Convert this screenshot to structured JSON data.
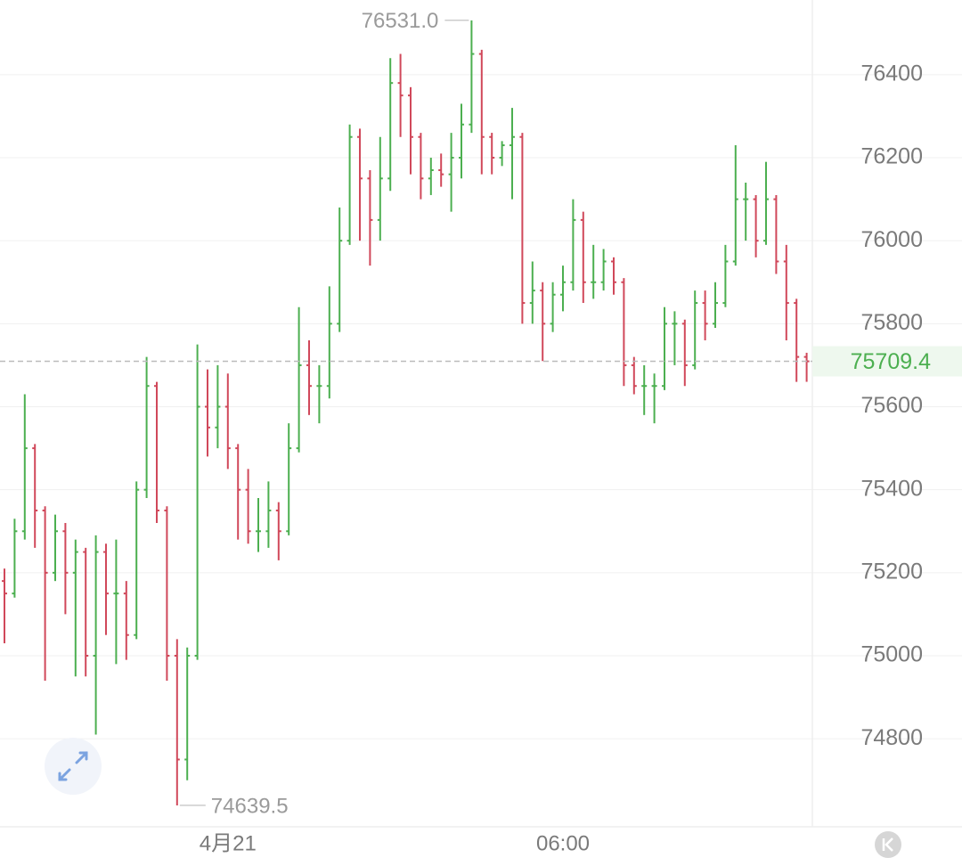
{
  "chart_data": {
    "type": "ohlc",
    "up_color": "#4caf50",
    "down_color": "#d0485a",
    "ylim": [
      74590,
      76580
    ],
    "yticks": [
      74800,
      75000,
      75200,
      75400,
      75600,
      75800,
      76000,
      76200,
      76400
    ],
    "grid": true,
    "high_marker": {
      "value": 76531,
      "label": "76531.0"
    },
    "low_marker": 74639.5,
    "last_price": 75709.4,
    "categories": [
      null,
      null,
      null,
      null,
      null,
      null,
      null,
      null,
      null,
      null,
      null,
      null,
      null,
      null,
      null,
      null,
      null,
      null,
      null,
      null,
      null,
      null,
      "4月21",
      null,
      null,
      null,
      null,
      null,
      null,
      null,
      null,
      null,
      null,
      null,
      null,
      null,
      null,
      null,
      null,
      null,
      null,
      null,
      null,
      null,
      null,
      null,
      null,
      null,
      null,
      null,
      null,
      null,
      null,
      null,
      null,
      "06:00",
      null,
      null,
      null,
      null,
      null,
      null,
      null,
      null,
      null,
      null,
      null,
      null,
      null,
      null,
      null,
      null,
      null,
      null,
      null,
      null,
      null,
      null,
      null,
      null
    ],
    "ohlc": [
      [
        75180,
        75210,
        75030,
        75150
      ],
      [
        75150,
        75330,
        75140,
        75300
      ],
      [
        75300,
        75630,
        75280,
        75500
      ],
      [
        75500,
        75510,
        75260,
        75350
      ],
      [
        75350,
        75360,
        74940,
        75200
      ],
      [
        75200,
        75340,
        75180,
        75300
      ],
      [
        75300,
        75320,
        75100,
        75200
      ],
      [
        75200,
        75280,
        74950,
        75250
      ],
      [
        75250,
        75260,
        74950,
        75000
      ],
      [
        75000,
        75290,
        74810,
        75250
      ],
      [
        75250,
        75270,
        75050,
        75150
      ],
      [
        75150,
        75280,
        74980,
        75150
      ],
      [
        75150,
        75180,
        74990,
        75050
      ],
      [
        75050,
        75420,
        75040,
        75400
      ],
      [
        75400,
        75720,
        75380,
        75650
      ],
      [
        75650,
        75660,
        75320,
        75350
      ],
      [
        75350,
        75360,
        74940,
        75000
      ],
      [
        75000,
        75040,
        74639.5,
        74750
      ],
      [
        74750,
        75020,
        74700,
        75000
      ],
      [
        75000,
        75750,
        74990,
        75600
      ],
      [
        75600,
        75690,
        75480,
        75550
      ],
      [
        75550,
        75700,
        75500,
        75600
      ],
      [
        75600,
        75680,
        75450,
        75500
      ],
      [
        75500,
        75510,
        75280,
        75400
      ],
      [
        75400,
        75450,
        75270,
        75300
      ],
      [
        75300,
        75380,
        75250,
        75300
      ],
      [
        75300,
        75420,
        75260,
        75350
      ],
      [
        75350,
        75370,
        75230,
        75300
      ],
      [
        75300,
        75560,
        75290,
        75500
      ],
      [
        75500,
        75840,
        75490,
        75700
      ],
      [
        75700,
        75760,
        75580,
        75650
      ],
      [
        75650,
        75700,
        75560,
        75650
      ],
      [
        75650,
        75890,
        75620,
        75800
      ],
      [
        75800,
        76080,
        75780,
        76000
      ],
      [
        76000,
        76280,
        75990,
        76250
      ],
      [
        76250,
        76270,
        76000,
        76150
      ],
      [
        76150,
        76170,
        75940,
        76050
      ],
      [
        76050,
        76250,
        76000,
        76150
      ],
      [
        76150,
        76440,
        76120,
        76380
      ],
      [
        76380,
        76450,
        76250,
        76350
      ],
      [
        76350,
        76370,
        76160,
        76250
      ],
      [
        76250,
        76260,
        76100,
        76150
      ],
      [
        76150,
        76200,
        76110,
        76170
      ],
      [
        76170,
        76210,
        76130,
        76160
      ],
      [
        76160,
        76260,
        76070,
        76200
      ],
      [
        76200,
        76330,
        76150,
        76280
      ],
      [
        76280,
        76531,
        76260,
        76450
      ],
      [
        76450,
        76460,
        76160,
        76250
      ],
      [
        76250,
        76260,
        76160,
        76200
      ],
      [
        76200,
        76240,
        76180,
        76230
      ],
      [
        76230,
        76320,
        76100,
        76250
      ],
      [
        76250,
        76260,
        75800,
        75850
      ],
      [
        75850,
        75950,
        75800,
        75880
      ],
      [
        75880,
        75900,
        75710,
        75800
      ],
      [
        75800,
        75900,
        75780,
        75870
      ],
      [
        75870,
        75940,
        75830,
        75900
      ],
      [
        75900,
        76100,
        75880,
        76050
      ],
      [
        76050,
        76070,
        75850,
        75900
      ],
      [
        75900,
        75990,
        75860,
        75900
      ],
      [
        75900,
        75980,
        75880,
        75950
      ],
      [
        75950,
        75960,
        75870,
        75900
      ],
      [
        75900,
        75910,
        75650,
        75700
      ],
      [
        75700,
        75720,
        75630,
        75650
      ],
      [
        75650,
        75700,
        75580,
        75650
      ],
      [
        75650,
        75680,
        75560,
        75650
      ],
      [
        75650,
        75840,
        75640,
        75800
      ],
      [
        75800,
        75830,
        75700,
        75800
      ],
      [
        75800,
        75810,
        75650,
        75700
      ],
      [
        75700,
        75880,
        75690,
        75850
      ],
      [
        75850,
        75880,
        75760,
        75800
      ],
      [
        75800,
        75900,
        75790,
        75850
      ],
      [
        75850,
        75990,
        75840,
        75950
      ],
      [
        75950,
        76230,
        75940,
        76100
      ],
      [
        76100,
        76140,
        76000,
        76100
      ],
      [
        76100,
        76110,
        75960,
        76000
      ],
      [
        76000,
        76190,
        75990,
        76100
      ],
      [
        76100,
        76110,
        75920,
        75950
      ],
      [
        75950,
        75990,
        75760,
        75850
      ],
      [
        75850,
        75860,
        75660,
        75720
      ],
      [
        75720,
        75730,
        75660,
        75709.4
      ]
    ]
  }
}
